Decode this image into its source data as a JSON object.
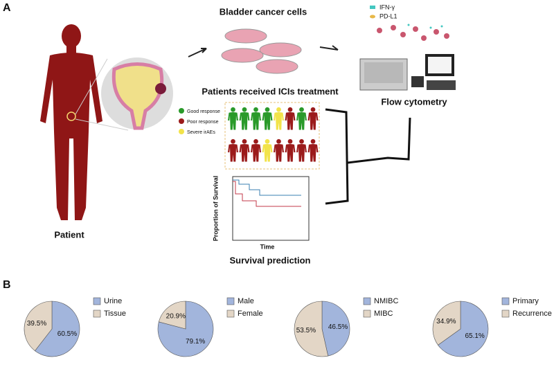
{
  "panel_a": {
    "label": "A",
    "cells_title": "Bladder cancer cells",
    "ifn_label": "IFN-γ",
    "pdl1_label": "PD-L1",
    "treatment_title": "Patients received ICIs treatment",
    "flow_title": "Flow cytometry",
    "good_response": "Good response",
    "poor_response": "Poor response",
    "severe": "Severe irAEs",
    "survival_ylabel": "Proportion of Survival",
    "survival_xlabel": "Time",
    "survival_title": "Survival prediction",
    "patient": "Patient"
  },
  "panel_b": {
    "label": "B"
  },
  "chart_data": [
    {
      "type": "pie",
      "categories": [
        "Urine",
        "Tissue"
      ],
      "values": [
        60.5,
        39.5
      ],
      "value_labels": [
        "60.5%",
        "39.5%"
      ],
      "colors": [
        "#a2b5dc",
        "#e3d6c6"
      ]
    },
    {
      "type": "pie",
      "categories": [
        "Male",
        "Female"
      ],
      "values": [
        79.1,
        20.9
      ],
      "value_labels": [
        "79.1%",
        "20.9%"
      ],
      "colors": [
        "#a2b5dc",
        "#e3d6c6"
      ]
    },
    {
      "type": "pie",
      "categories": [
        "NMIBC",
        "MIBC"
      ],
      "values": [
        46.5,
        53.5
      ],
      "value_labels": [
        "46.5%",
        "53.5%"
      ],
      "colors": [
        "#a2b5dc",
        "#e3d6c6"
      ]
    },
    {
      "type": "pie",
      "categories": [
        "Primary",
        "Recurrence"
      ],
      "values": [
        65.1,
        34.9
      ],
      "value_labels": [
        "65.1%",
        "34.9%"
      ],
      "colors": [
        "#a2b5dc",
        "#e3d6c6"
      ]
    }
  ]
}
